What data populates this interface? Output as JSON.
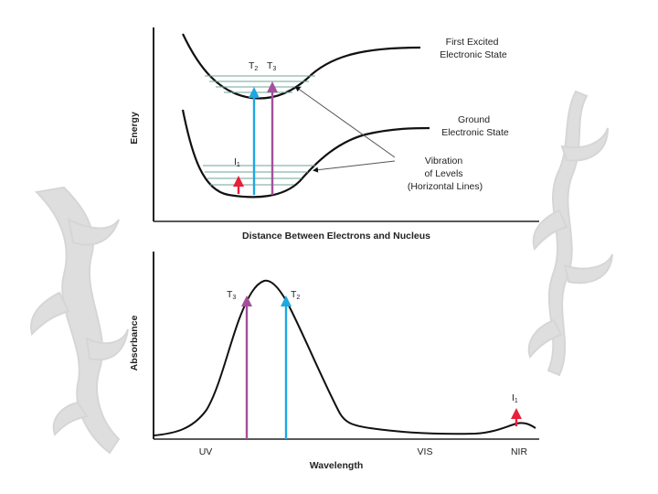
{
  "top_diagram": {
    "y_axis_label": "Energy",
    "x_axis_label": "Distance Between Electrons and Nucleus",
    "state_labels": {
      "excited": [
        "First Excited",
        "Electronic State"
      ],
      "ground": [
        "Ground",
        "Electronic State"
      ]
    },
    "vibration_label": [
      "Vibration",
      "of Levels",
      "(Horizontal Lines)"
    ],
    "transitions": {
      "t2": {
        "base": "T",
        "sub": "2",
        "color": "#1ea7e0"
      },
      "t3": {
        "base": "T",
        "sub": "3",
        "color": "#a4509c"
      },
      "i1": {
        "base": "I",
        "sub": "1",
        "color": "#e8203a"
      }
    }
  },
  "bottom_chart": {
    "y_axis_label": "Absorbance",
    "x_axis_label": "Wavelength",
    "regions": [
      "UV",
      "VIS",
      "NIR"
    ],
    "peaks": {
      "t3": {
        "base": "T",
        "sub": "3",
        "color": "#a4509c"
      },
      "t2": {
        "base": "T",
        "sub": "2",
        "color": "#1ea7e0"
      },
      "i1": {
        "base": "I",
        "sub": "1",
        "color": "#e8203a"
      }
    }
  },
  "colors": {
    "curve": "#111111",
    "vibration_lines": "#6fa39a",
    "axis": "#222222",
    "leader_lines": "#555555",
    "decor": "#d6d6d6"
  }
}
